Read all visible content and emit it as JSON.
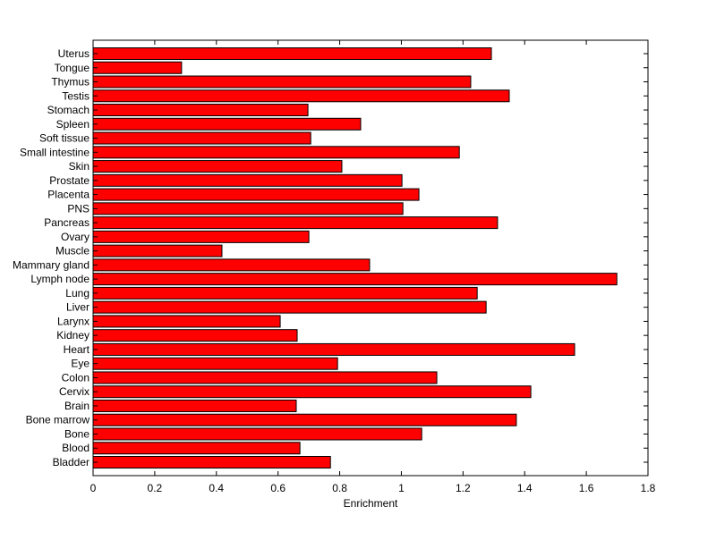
{
  "chart_data": {
    "type": "bar",
    "orientation": "horizontal",
    "title": "",
    "xlabel": "Enrichment",
    "ylabel": "",
    "xlim": [
      0,
      1.8
    ],
    "xticks": [
      "0",
      "0.2",
      "0.4",
      "0.6",
      "0.8",
      "1",
      "1.2",
      "1.4",
      "1.6",
      "1.8"
    ],
    "bar_color": "#ff0000",
    "grid": false,
    "categories": [
      "Bladder",
      "Blood",
      "Bone",
      "Bone marrow",
      "Brain",
      "Cervix",
      "Colon",
      "Eye",
      "Heart",
      "Kidney",
      "Larynx",
      "Liver",
      "Lung",
      "Lymph node",
      "Mammary gland",
      "Muscle",
      "Ovary",
      "Pancreas",
      "PNS",
      "Placenta",
      "Prostate",
      "Skin",
      "Small intestine",
      "Soft tissue",
      "Spleen",
      "Stomach",
      "Testis",
      "Thymus",
      "Tongue",
      "Uterus"
    ],
    "values": [
      0.77,
      0.671,
      1.066,
      1.373,
      0.659,
      1.42,
      1.115,
      0.793,
      1.562,
      0.662,
      0.607,
      1.275,
      1.246,
      1.699,
      0.897,
      0.418,
      0.7,
      1.312,
      1.005,
      1.057,
      1.002,
      0.807,
      1.188,
      0.706,
      0.868,
      0.697,
      1.35,
      1.225,
      0.287,
      1.292
    ]
  }
}
